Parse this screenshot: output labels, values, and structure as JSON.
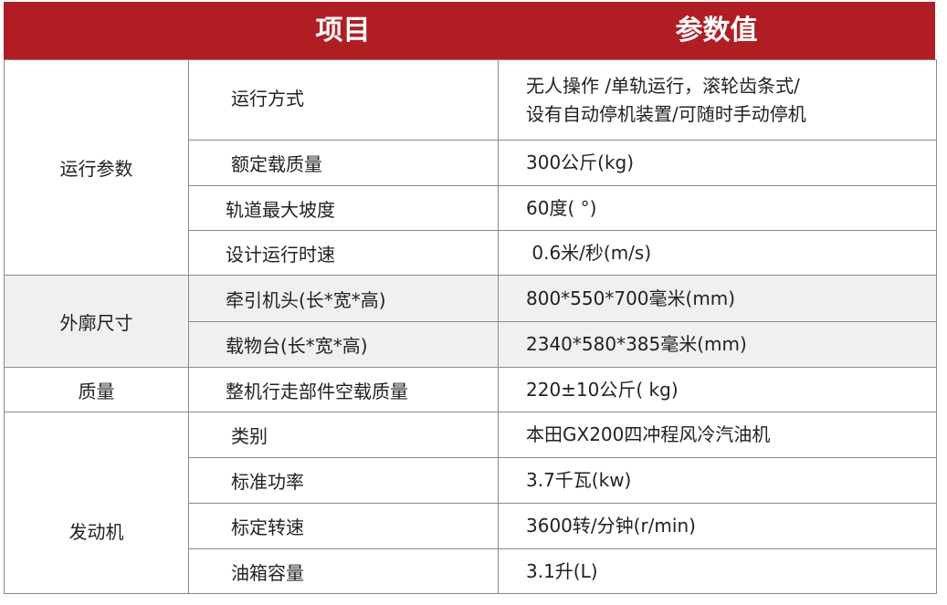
{
  "header": {
    "item_label": "项目",
    "value_label": "参数值",
    "color": "#b01e24"
  },
  "groups": [
    {
      "name": "运行参数",
      "rows": [
        {
          "item": "运行方式",
          "value_lines": [
            "无人操作 /单轨运行，滚轮齿条式/",
            "设有自动停机装置/可随时手动停机"
          ]
        },
        {
          "item": "额定载质量",
          "value": "300公斤(kg)"
        },
        {
          "item": "轨道最大坡度",
          "value": "60度( °)"
        },
        {
          "item": "设计运行时速",
          "value": " 0.6米/秒(m/s)"
        }
      ]
    },
    {
      "name": "外廓尺寸",
      "rows": [
        {
          "item": "牵引机头(长*宽*高)",
          "value": "800*550*700毫米(mm)"
        },
        {
          "item": "载物台(长*宽*高)",
          "value": "2340*580*385毫米(mm)"
        }
      ]
    },
    {
      "name": "质量",
      "rows": [
        {
          "item": "整机行走部件空载质量",
          "value": "220±10公斤( kg)"
        }
      ]
    },
    {
      "name": "发动机",
      "rows": [
        {
          "item": "类别",
          "value": "本田GX200四冲程风冷汽油机"
        },
        {
          "item": "标准功率",
          "value": "3.7千瓦(kw)"
        },
        {
          "item": "标定转速",
          "value": "3600转/分钟(r/min)"
        },
        {
          "item": "油箱容量",
          "value": "3.1升(L)"
        }
      ]
    }
  ]
}
